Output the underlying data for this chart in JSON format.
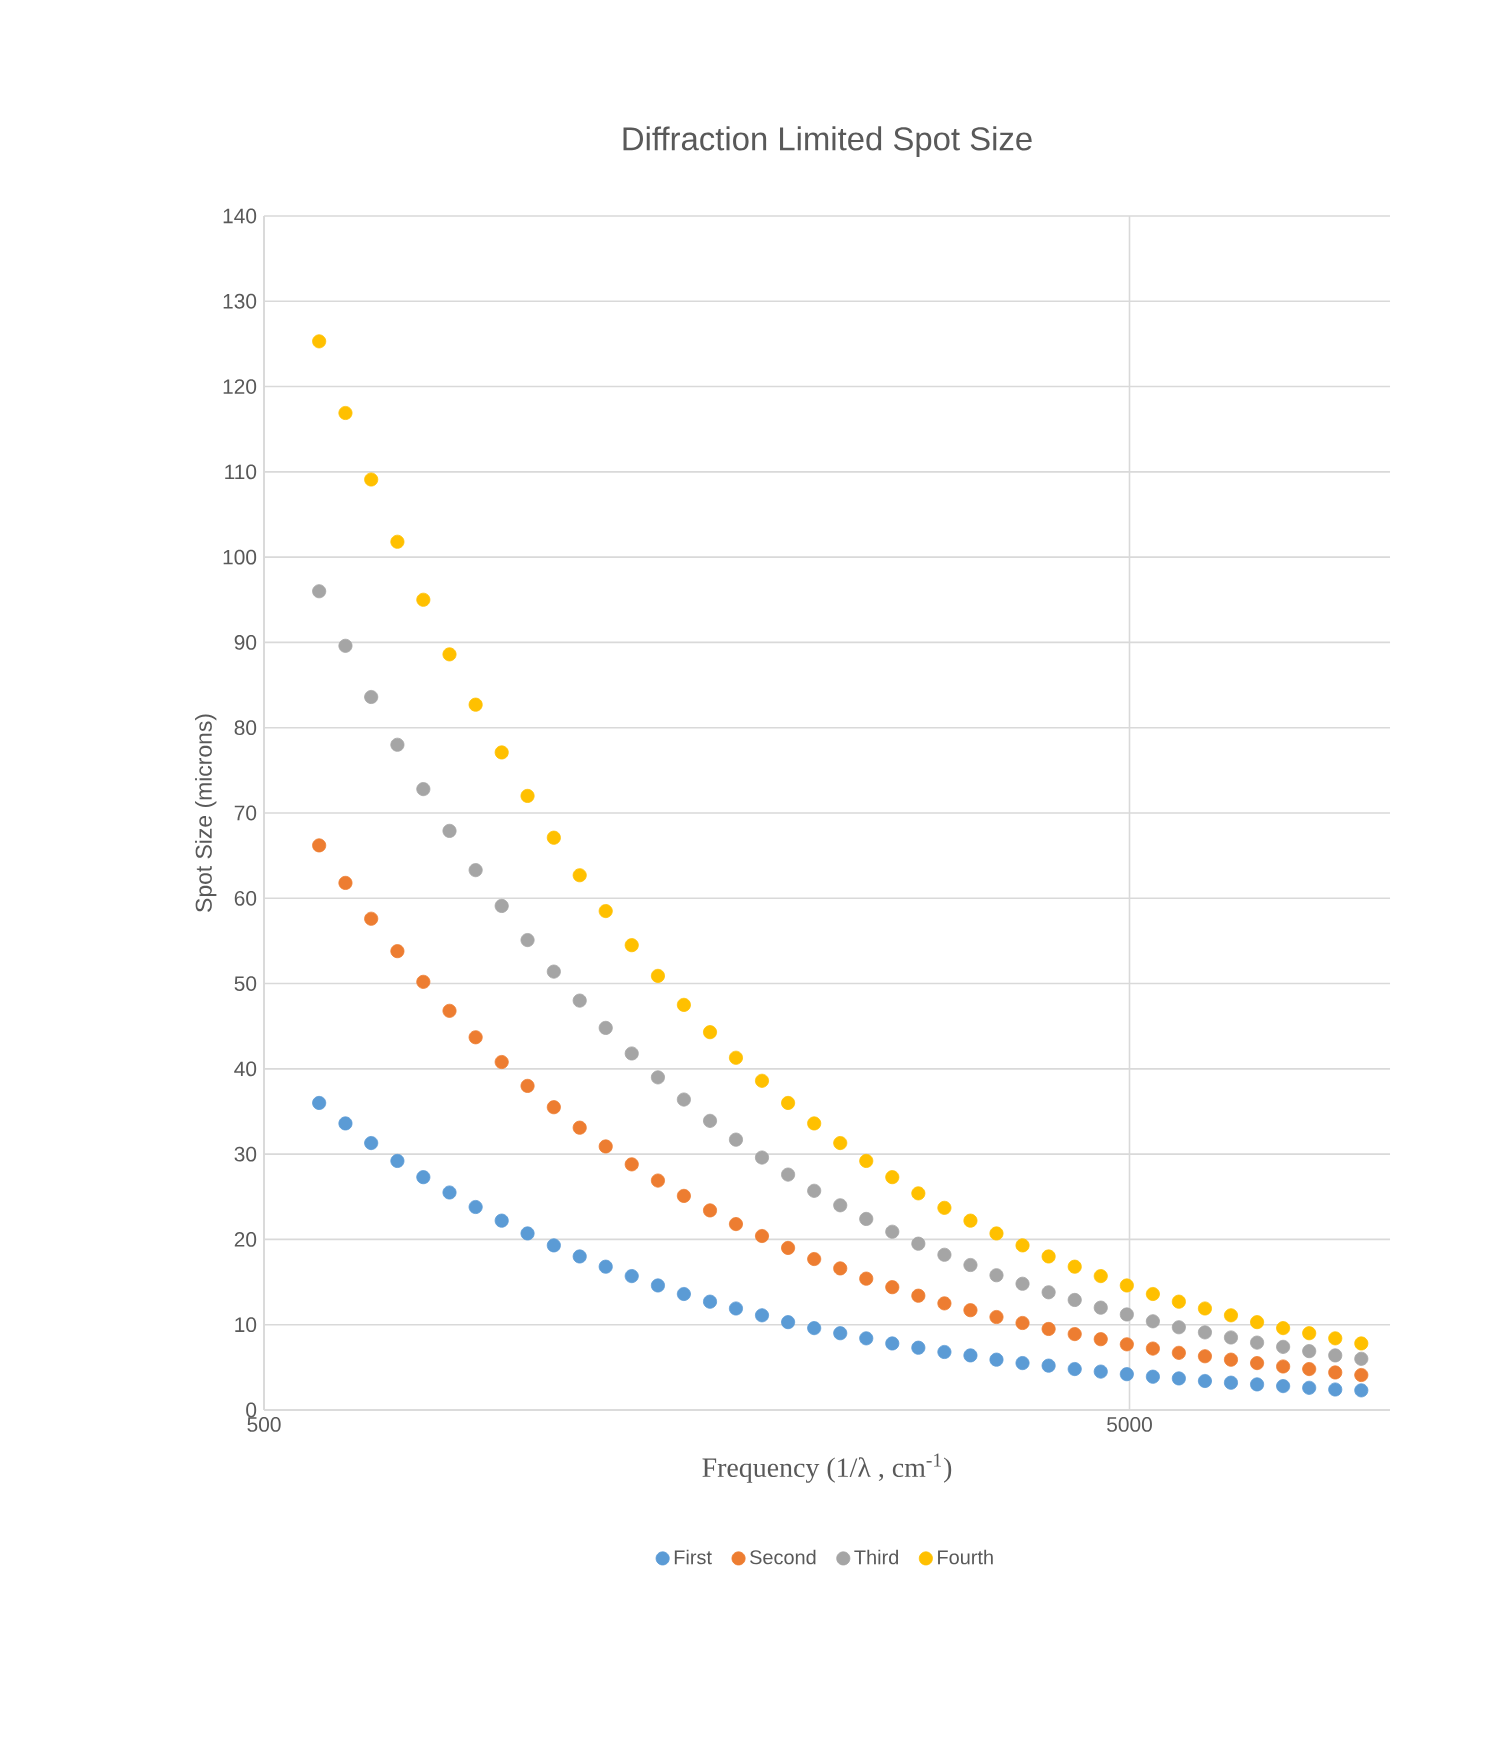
{
  "chart_data": {
    "type": "scatter",
    "title": "Diffraction Limited Spot Size",
    "xlabel": "Frequency (1/λ , cm$^{-1}$)",
    "ylabel": "Spot Size (microns)",
    "x": [
      579,
      621,
      665,
      713,
      764,
      819,
      878,
      941,
      1008,
      1081,
      1158,
      1241,
      1330,
      1426,
      1528,
      1638,
      1755,
      1881,
      2016,
      2161,
      2316,
      2482,
      2660,
      2851,
      3056,
      3275,
      3510,
      3762,
      4032,
      4322,
      4632,
      4965,
      5321,
      5702,
      6112,
      6550,
      7021,
      7525,
      8065,
      8644,
      9264
    ],
    "series": [
      {
        "name": "First",
        "color": "#5b9bd5",
        "values": [
          36,
          33.6,
          31.3,
          29.2,
          27.3,
          25.5,
          23.8,
          22.2,
          20.7,
          19.3,
          18,
          16.8,
          15.7,
          14.6,
          13.6,
          12.7,
          11.9,
          11.1,
          10.3,
          9.6,
          9,
          8.4,
          7.8,
          7.3,
          6.8,
          6.4,
          5.9,
          5.5,
          5.2,
          4.8,
          4.5,
          4.2,
          3.9,
          3.7,
          3.4,
          3.2,
          3.0,
          2.8,
          2.6,
          2.4,
          2.3
        ]
      },
      {
        "name": "Second",
        "color": "#ed7d31",
        "values": [
          66.2,
          61.8,
          57.6,
          53.8,
          50.2,
          46.8,
          43.7,
          40.8,
          38.0,
          35.5,
          33.1,
          30.9,
          28.8,
          26.9,
          25.1,
          23.4,
          21.8,
          20.4,
          19.0,
          17.7,
          16.6,
          15.4,
          14.4,
          13.4,
          12.5,
          11.7,
          10.9,
          10.2,
          9.5,
          8.9,
          8.3,
          7.7,
          7.2,
          6.7,
          6.3,
          5.9,
          5.5,
          5.1,
          4.8,
          4.4,
          4.1
        ]
      },
      {
        "name": "Third",
        "color": "#a5a5a5",
        "values": [
          96,
          89.6,
          83.6,
          78.0,
          72.8,
          67.9,
          63.3,
          59.1,
          55.1,
          51.4,
          48,
          44.8,
          41.8,
          39.0,
          36.4,
          33.9,
          31.7,
          29.6,
          27.6,
          25.7,
          24,
          22.4,
          20.9,
          19.5,
          18.2,
          17.0,
          15.8,
          14.8,
          13.8,
          12.9,
          12,
          11.2,
          10.4,
          9.7,
          9.1,
          8.5,
          7.9,
          7.4,
          6.9,
          6.4,
          6.0
        ]
      },
      {
        "name": "Fourth",
        "color": "#ffc000",
        "values": [
          125.3,
          116.9,
          109.1,
          101.8,
          95.0,
          88.6,
          82.7,
          77.1,
          72.0,
          67.1,
          62.7,
          58.5,
          54.5,
          50.9,
          47.5,
          44.3,
          41.3,
          38.6,
          36.0,
          33.6,
          31.3,
          29.2,
          27.3,
          25.4,
          23.7,
          22.2,
          20.7,
          19.3,
          18.0,
          16.8,
          15.7,
          14.6,
          13.6,
          12.7,
          11.9,
          11.1,
          10.3,
          9.6,
          9.0,
          8.4,
          7.8
        ]
      }
    ],
    "xlim": [
      500,
      10000
    ],
    "xticks": [
      500,
      5000
    ],
    "ylim": [
      0,
      140
    ],
    "yticks": [
      0,
      10,
      20,
      30,
      40,
      50,
      60,
      70,
      80,
      90,
      100,
      110,
      120,
      130,
      140
    ],
    "log": "x",
    "grid": true,
    "legend": "bottom",
    "marker": "circle"
  }
}
